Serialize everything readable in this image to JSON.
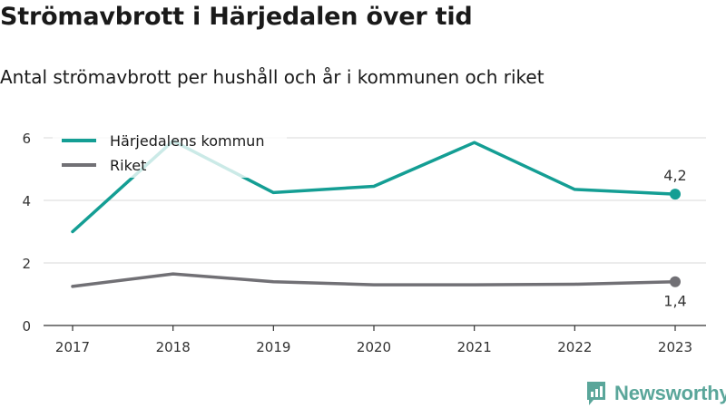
{
  "header": {
    "title": "Strömavbrott i Härjedalen över tid",
    "subtitle": "Antal strömavbrott per hushåll och år i kommunen och riket"
  },
  "brand": {
    "name": "Newsworthy",
    "icon": "newsworthy-logo-icon",
    "color": "#5aa69a"
  },
  "chart_data": {
    "type": "line",
    "x": [
      "2017",
      "2018",
      "2019",
      "2020",
      "2021",
      "2022",
      "2023"
    ],
    "series": [
      {
        "name": "Härjedalens kommun",
        "color": "#149e94",
        "values": [
          3.0,
          5.9,
          4.25,
          4.45,
          5.85,
          4.35,
          4.2
        ],
        "end_label": "4,2"
      },
      {
        "name": "Riket",
        "color": "#717075",
        "values": [
          1.25,
          1.65,
          1.4,
          1.3,
          1.3,
          1.32,
          1.4
        ],
        "end_label": "1,4"
      }
    ],
    "yticks": [
      0,
      2,
      4,
      6
    ],
    "ylim": [
      0,
      6.4
    ],
    "grid": true,
    "legend": "top-left"
  }
}
